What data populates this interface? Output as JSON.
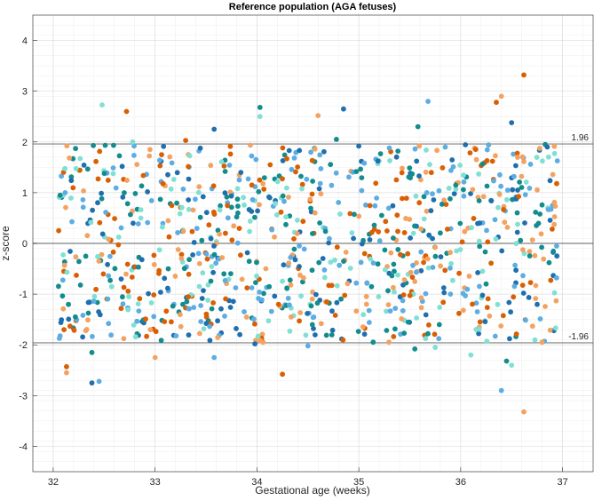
{
  "chart_data": {
    "type": "scatter",
    "title": "Reference population (AGA fetuses)",
    "xlabel": "Gestational age (weeks)",
    "ylabel": "z-score",
    "xlim": [
      31.8,
      37.3
    ],
    "ylim": [
      -4.5,
      4.5
    ],
    "xticks": [
      32,
      33,
      34,
      35,
      36,
      37
    ],
    "yticks": [
      -4,
      -3,
      -2,
      -1,
      0,
      1,
      2,
      3,
      4
    ],
    "grid": true,
    "reference_lines": [
      {
        "y": 1.96,
        "label": "1.96",
        "color": "#808080"
      },
      {
        "y": 0,
        "label": "",
        "color": "#808080"
      },
      {
        "y": -1.96,
        "label": "-1.96",
        "color": "#808080"
      }
    ],
    "series_colors": [
      "#D95F02",
      "#F4A261",
      "#1F6FAE",
      "#5DADE2",
      "#128C8C",
      "#7FE0D4"
    ],
    "outliers": [
      {
        "x": 32.13,
        "y": -2.43
      },
      {
        "x": 32.13,
        "y": -2.55
      },
      {
        "x": 32.38,
        "y": -2.75
      },
      {
        "x": 32.45,
        "y": -2.72
      },
      {
        "x": 32.38,
        "y": -2.15
      },
      {
        "x": 32.48,
        "y": 2.73
      },
      {
        "x": 32.72,
        "y": 2.6
      },
      {
        "x": 33.0,
        "y": -2.25
      },
      {
        "x": 33.58,
        "y": 2.25
      },
      {
        "x": 33.58,
        "y": -2.25
      },
      {
        "x": 34.03,
        "y": 2.68
      },
      {
        "x": 34.03,
        "y": 2.5
      },
      {
        "x": 34.25,
        "y": -2.58
      },
      {
        "x": 34.6,
        "y": 2.52
      },
      {
        "x": 34.85,
        "y": 2.65
      },
      {
        "x": 35.68,
        "y": 2.8
      },
      {
        "x": 35.58,
        "y": 2.3
      },
      {
        "x": 36.1,
        "y": -2.2
      },
      {
        "x": 36.35,
        "y": 2.78
      },
      {
        "x": 36.4,
        "y": 2.9
      },
      {
        "x": 36.5,
        "y": 2.38
      },
      {
        "x": 36.4,
        "y": -2.9
      },
      {
        "x": 36.45,
        "y": -2.32
      },
      {
        "x": 36.5,
        "y": -2.4
      },
      {
        "x": 36.62,
        "y": 3.32
      },
      {
        "x": 36.62,
        "y": -3.32
      },
      {
        "x": 36.85,
        "y": 1.9
      },
      {
        "x": 35.3,
        "y": 1.88
      },
      {
        "x": 34.78,
        "y": 2.05
      },
      {
        "x": 32.78,
        "y": 2.0
      },
      {
        "x": 33.3,
        "y": 2.03
      },
      {
        "x": 32.95,
        "y": 1.85
      },
      {
        "x": 33.98,
        "y": -1.98
      },
      {
        "x": 34.5,
        "y": -2.02
      },
      {
        "x": 35.55,
        "y": -2.08
      },
      {
        "x": 35.75,
        "y": -2.05
      }
    ],
    "bulk_points": {
      "count": 1000,
      "x_range": [
        32.05,
        36.95
      ],
      "y_range": [
        -1.95,
        1.95
      ],
      "seed": 7
    }
  }
}
